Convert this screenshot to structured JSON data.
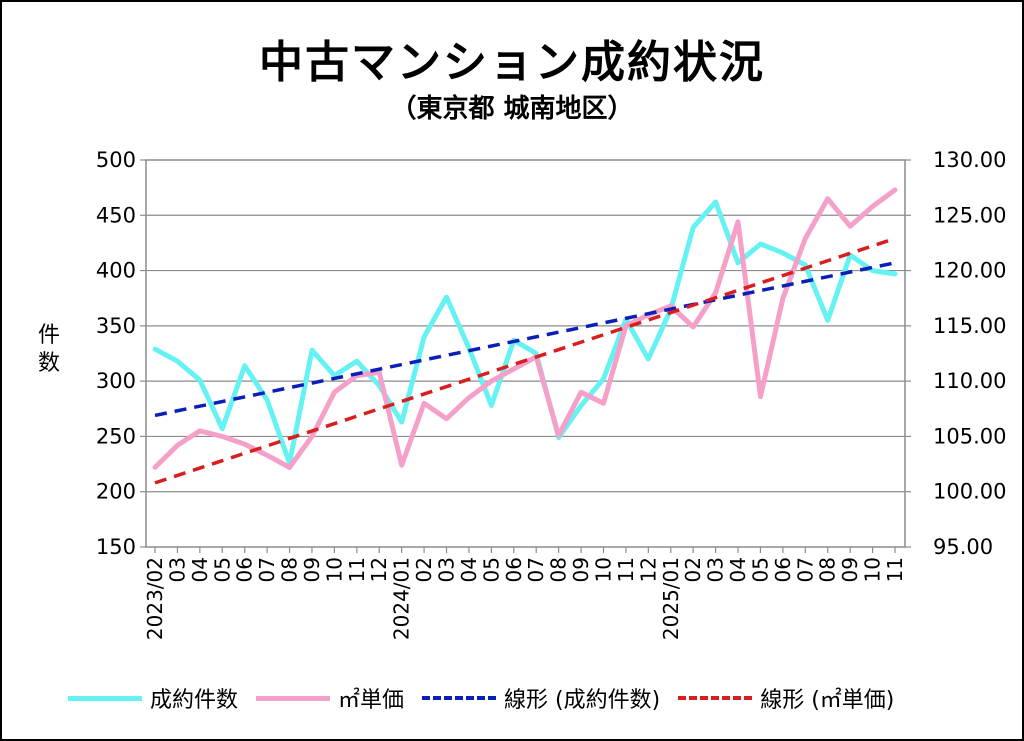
{
  "chart_data": {
    "type": "line",
    "title": "中古マンション成約状況",
    "subtitle": "（東京都 城南地区）",
    "ylabel": "件数",
    "xlabel": "",
    "y_left": {
      "min": 150,
      "max": 500,
      "step": 50,
      "ticks": [
        "150",
        "200",
        "250",
        "300",
        "350",
        "400",
        "450",
        "500"
      ]
    },
    "y_right": {
      "min": 95,
      "max": 130,
      "step": 5,
      "ticks": [
        "95.00",
        "100.00",
        "105.00",
        "110.00",
        "115.00",
        "120.00",
        "125.00",
        "130.00"
      ]
    },
    "categories": [
      "2023/02",
      "03",
      "04",
      "05",
      "06",
      "07",
      "08",
      "09",
      "10",
      "11",
      "12",
      "2024/01",
      "02",
      "03",
      "04",
      "05",
      "06",
      "07",
      "08",
      "09",
      "10",
      "11",
      "12",
      "2025/01",
      "02",
      "03",
      "04",
      "05",
      "06",
      "07",
      "08",
      "09",
      "10",
      "11"
    ],
    "grid": true,
    "legend_position": "bottom",
    "series": [
      {
        "name": "成約件数",
        "axis": "left",
        "color": "#66f2f2",
        "style": "solid",
        "values": [
          329,
          318,
          301,
          257,
          314,
          283,
          226,
          328,
          305,
          318,
          296,
          263,
          340,
          376,
          330,
          278,
          337,
          325,
          249,
          278,
          302,
          356,
          320,
          365,
          439,
          462,
          407,
          424,
          416,
          405,
          355,
          414,
          400,
          397
        ]
      },
      {
        "name": "㎡単価",
        "axis": "right",
        "color": "#f5a0c8",
        "style": "solid",
        "values": [
          102.2,
          104.2,
          105.5,
          105.0,
          104.3,
          103.3,
          102.2,
          105.0,
          109.0,
          110.5,
          110.8,
          102.4,
          108.0,
          106.6,
          108.5,
          110.0,
          111.1,
          112.2,
          105.1,
          109.0,
          108.0,
          115.0,
          116.0,
          116.8,
          114.9,
          118.0,
          124.4,
          108.6,
          117.5,
          122.9,
          126.5,
          124.0,
          125.8,
          127.3
        ]
      },
      {
        "name": "線形 (成約件数)",
        "axis": "left",
        "color": "#0a1fb8",
        "style": "dash",
        "trend": [
          269,
          407
        ]
      },
      {
        "name": "線形 (㎡単価)",
        "axis": "right",
        "color": "#d81e1e",
        "style": "dash",
        "trend": [
          100.8,
          122.9
        ]
      }
    ]
  }
}
